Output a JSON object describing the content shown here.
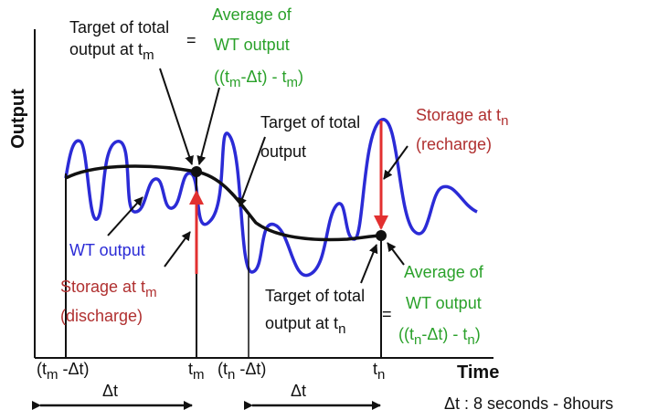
{
  "colors": {
    "wt_output": "#2b2bd6",
    "target": "#111111",
    "storage_arrow": "#e23030",
    "green_text": "#2aa12a",
    "red_text": "#b03030",
    "blue_text": "#2b2bd6"
  },
  "axes": {
    "y_title": "Output",
    "x_title": "Time"
  },
  "labels": {
    "target_tm_l1": "Target of total",
    "target_tm_l2": "output at t",
    "target_tm_sub": "m",
    "equals_top": "=",
    "avg_top_l1": "Average of",
    "avg_top_l2": "WT output",
    "avg_top_l3": "((t",
    "avg_top_l3b": "-Δt) - t",
    "avg_top_l3c": ")",
    "target_mid_l1": "Target of total",
    "target_mid_l2": "output",
    "storage_tn_l1": "Storage at t",
    "storage_tn_sub": "n",
    "storage_tn_l2": "(recharge)",
    "wt_output": "WT output",
    "storage_tm_l1": "Storage  at  t",
    "storage_tm_sub": "m",
    "storage_tm_l2": "(discharge)",
    "avg_bot_l1": "Average of",
    "avg_bot_l2": "WT output",
    "avg_bot_l3": "((t",
    "avg_bot_l3b": "-Δt) - t",
    "avg_bot_l3c": ")",
    "target_tn_l1": "Target of total",
    "target_tn_l2": "output at t",
    "target_tn_sub": "n",
    "equals_bot": "="
  },
  "ticks": {
    "tm_minus_dt": "(t",
    "tm_minus_dt_sub": "m",
    "tm_minus_dt_tail": " -Δt)",
    "tm": "t",
    "tm_sub": "m",
    "tn_minus_dt": "(t",
    "tn_minus_dt_sub": "n",
    "tn_minus_dt_tail": " -Δt)",
    "tn": "t",
    "tn_sub": "n"
  },
  "interval": {
    "dt_label_left": "Δt",
    "dt_label_right": "Δt",
    "note": "Δt : 8 seconds - 8hours"
  }
}
